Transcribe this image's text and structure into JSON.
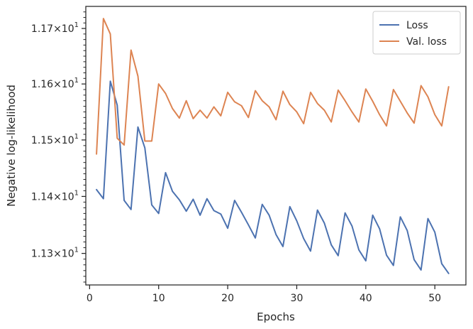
{
  "chart_data": {
    "type": "line",
    "xlabel": "Epochs",
    "ylabel": "Negative log-likelihood",
    "xlim": [
      -0.55,
      54.5
    ],
    "ylim": [
      11.245,
      11.74
    ],
    "yscale": "log",
    "grid": false,
    "legend_position": "top-right",
    "x_ticks": [
      0,
      10,
      20,
      30,
      40,
      50
    ],
    "x_tick_labels": [
      "0",
      "10",
      "20",
      "30",
      "40",
      "50"
    ],
    "y_ticks": [
      11.3,
      11.4,
      11.5,
      11.6,
      11.7
    ],
    "y_tick_labels": [
      {
        "mantissa": "1.13",
        "times": "×",
        "base": "10",
        "exp": "1"
      },
      {
        "mantissa": "1.14",
        "times": "×",
        "base": "10",
        "exp": "1"
      },
      {
        "mantissa": "1.15",
        "times": "×",
        "base": "10",
        "exp": "1"
      },
      {
        "mantissa": "1.16",
        "times": "×",
        "base": "10",
        "exp": "1"
      },
      {
        "mantissa": "1.17",
        "times": "×",
        "base": "10",
        "exp": "1"
      }
    ],
    "x": [
      1,
      2,
      3,
      4,
      5,
      6,
      7,
      8,
      9,
      10,
      11,
      12,
      13,
      14,
      15,
      16,
      17,
      18,
      19,
      20,
      21,
      22,
      23,
      24,
      25,
      26,
      27,
      28,
      29,
      30,
      31,
      32,
      33,
      34,
      35,
      36,
      37,
      38,
      39,
      40,
      41,
      42,
      43,
      44,
      45,
      46,
      47,
      48,
      49,
      50,
      51,
      52
    ],
    "series": [
      {
        "name": "Loss",
        "color": "#4c72b0",
        "values": [
          11.412,
          11.396,
          11.605,
          11.562,
          11.393,
          11.377,
          11.523,
          11.486,
          11.385,
          11.37,
          11.442,
          11.409,
          11.394,
          11.374,
          11.395,
          11.367,
          11.396,
          11.375,
          11.369,
          11.344,
          11.393,
          11.372,
          11.35,
          11.327,
          11.386,
          11.367,
          11.333,
          11.312,
          11.382,
          11.357,
          11.326,
          11.304,
          11.376,
          11.353,
          11.315,
          11.296,
          11.371,
          11.348,
          11.306,
          11.287,
          11.367,
          11.343,
          11.297,
          11.279,
          11.364,
          11.34,
          11.289,
          11.271,
          11.361,
          11.337,
          11.282,
          11.265
        ]
      },
      {
        "name": "Val. loss",
        "color": "#dd8452",
        "values": [
          11.475,
          11.718,
          11.69,
          11.503,
          11.491,
          11.661,
          11.614,
          11.498,
          11.498,
          11.6,
          11.583,
          11.556,
          11.539,
          11.57,
          11.538,
          11.553,
          11.539,
          11.559,
          11.543,
          11.585,
          11.568,
          11.561,
          11.54,
          11.588,
          11.57,
          11.559,
          11.536,
          11.587,
          11.563,
          11.55,
          11.529,
          11.585,
          11.565,
          11.553,
          11.532,
          11.589,
          11.57,
          11.55,
          11.532,
          11.591,
          11.569,
          11.545,
          11.525,
          11.59,
          11.569,
          11.548,
          11.53,
          11.597,
          11.577,
          11.545,
          11.525,
          11.595
        ]
      }
    ]
  }
}
